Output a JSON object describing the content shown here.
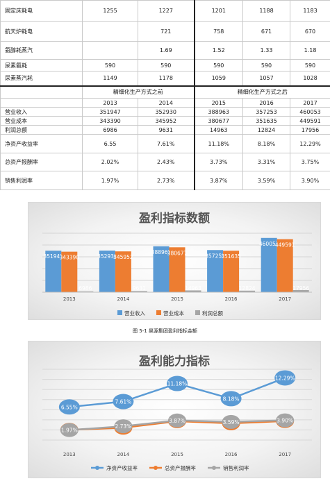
{
  "top_rows": [
    {
      "label": "固定床耗电",
      "values": [
        "1255",
        "1227",
        "1201",
        "1188",
        "1183"
      ]
    },
    {
      "label": "航天炉耗电",
      "values": [
        "",
        "721",
        "758",
        "671",
        "670"
      ]
    },
    {
      "label": "氨醇耗蒸汽",
      "values": [
        "",
        "1.69",
        "1.52",
        "1.33",
        "1.18"
      ]
    },
    {
      "label": "尿素氨耗",
      "values": [
        "590",
        "590",
        "590",
        "590",
        "590"
      ]
    },
    {
      "label": "尿素蒸汽耗",
      "values": [
        "1149",
        "1178",
        "1059",
        "1057",
        "1028"
      ]
    }
  ],
  "headers": {
    "before": "精细化生产方式之前",
    "after": "精细化生产方式之后"
  },
  "years": [
    "2013",
    "2014",
    "2015",
    "2016",
    "2017"
  ],
  "fin_rows": [
    {
      "label": "营业收入",
      "values": [
        "351947",
        "352930",
        "388963",
        "357253",
        "460053"
      ]
    },
    {
      "label": "营业成本",
      "values": [
        "343390",
        "345952",
        "380677",
        "351635",
        "449591"
      ]
    },
    {
      "label": "利润总额",
      "values": [
        "6986",
        "9631",
        "14963",
        "12824",
        "17956"
      ]
    },
    {
      "label": "净资产收益率",
      "values": [
        "6.55",
        "7.61%",
        "11.18%",
        "8.18%",
        "12.29%"
      ]
    },
    {
      "label": "总资产报酬率",
      "values": [
        "2.02%",
        "2.43%",
        "3.73%",
        "3.31%",
        "3.75%"
      ]
    },
    {
      "label": "销售利润率",
      "values": [
        "1.97%",
        "2.73%",
        "3.87%",
        "3.59%",
        "3.90%"
      ]
    }
  ],
  "caption1": "图 5-1 昊源集团盈利指标金额",
  "colors": {
    "series1": "#5b9bd5",
    "series2": "#ed7d31",
    "series3": "#a5a5a5"
  },
  "chart_data": [
    {
      "type": "bar",
      "title": "盈利指标数额",
      "categories": [
        "2013",
        "2014",
        "2015",
        "2016",
        "2017"
      ],
      "series": [
        {
          "name": "营业收入",
          "values": [
            351947,
            352930,
            388963,
            357253,
            460053
          ],
          "labels": [
            "351947",
            "352930",
            "388963",
            "357253",
            "460053"
          ]
        },
        {
          "name": "营业成本",
          "values": [
            343390,
            345952,
            380677,
            351635,
            449591
          ],
          "labels": [
            "343390",
            "345952",
            "380677",
            "351635",
            "449591"
          ]
        },
        {
          "name": "利润总额",
          "values": [
            6986,
            9631,
            14963,
            12824,
            17956
          ],
          "labels": [
            "6986",
            "9631",
            "14963",
            "12824",
            "17956"
          ]
        }
      ],
      "ylim": [
        0,
        500000
      ],
      "grid": true,
      "legend": "bottom"
    },
    {
      "type": "line",
      "title": "盈利能力指标",
      "categories": [
        "2013",
        "2014",
        "2015",
        "2016",
        "2017"
      ],
      "series": [
        {
          "name": "净资产收益率",
          "values": [
            6.55,
            7.61,
            11.18,
            8.18,
            12.29
          ],
          "labels": [
            "6.55%",
            "7.61%",
            "11.18%",
            "8.18%",
            "12.29%"
          ]
        },
        {
          "name": "总资产报酬率",
          "values": [
            2.02,
            2.43,
            3.73,
            3.31,
            3.75
          ],
          "labels": [
            "2.02%",
            "2.43%",
            "3.73%",
            "3.31%",
            "3.75%"
          ]
        },
        {
          "name": "销售利润率",
          "values": [
            1.97,
            2.73,
            3.87,
            3.59,
            3.9
          ],
          "labels": [
            "1.97%",
            "2.73%",
            "3.87%",
            "3.59%",
            "3.90%"
          ]
        }
      ],
      "ylim": [
        0,
        14
      ],
      "grid": true,
      "legend": "bottom"
    }
  ]
}
